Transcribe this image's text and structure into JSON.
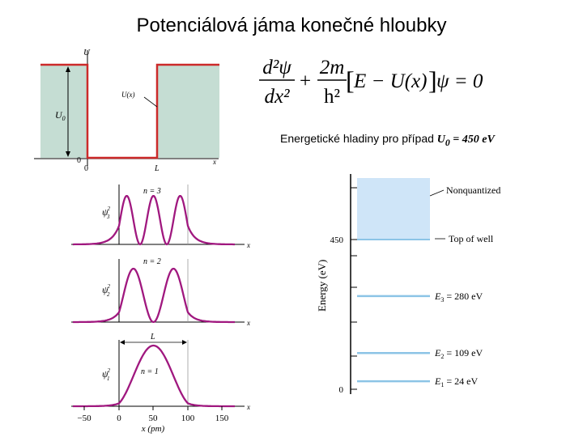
{
  "slide": {
    "title": "Potenciálová jáma konečné hloubky",
    "caption_prefix": "Energetické hladiny pro případ",
    "caption_var": "U",
    "caption_sub": "0",
    "caption_value": " = 450 eV"
  },
  "equation": {
    "num_left": "d²ψ",
    "den_left": "dx²",
    "num_right": "2m",
    "den_right": "h²",
    "bracket": "E − U(x)",
    "tail": "ψ = 0"
  },
  "potential_plot": {
    "y_axis_label": "U",
    "depth_label": "U",
    "depth_sub": "0",
    "curve_label": "U(x)",
    "x_axis_label": "x",
    "tick_zero_y": "0",
    "tick_zero_x": "0",
    "tick_L": "L"
  },
  "wave_plots": {
    "x_axis_label": "x (pm)",
    "axis_letter": "x",
    "width_label": "L",
    "panels": [
      {
        "n_label": "n = 3",
        "psi": "ψ",
        "sub": "3",
        "sup": "2"
      },
      {
        "n_label": "n = 2",
        "psi": "ψ",
        "sub": "2",
        "sup": "2"
      },
      {
        "n_label": "n = 1",
        "psi": "ψ",
        "sub": "1",
        "sup": "2"
      }
    ],
    "ticks": [
      "−50",
      "0",
      "50",
      "100",
      "150"
    ]
  },
  "energy_diagram": {
    "y_label": "Energy (eV)",
    "tick_450": "450",
    "tick_0": "0",
    "nonquantized_label": "Nonquantized",
    "top_label": "Top of well",
    "levels": [
      {
        "E": "E",
        "sub": "3",
        "text": " = 280 eV"
      },
      {
        "E": "E",
        "sub": "2",
        "text": " = 109 eV"
      },
      {
        "E": "E",
        "sub": "1",
        "text": " = 24 eV"
      }
    ]
  },
  "chart_data": [
    {
      "type": "line",
      "title": "",
      "xlabel": "x",
      "ylabel": "U",
      "series": [
        {
          "name": "U(x)",
          "x": [
            "<0",
            "0",
            "0…L",
            "L",
            ">L"
          ],
          "values": [
            "U0",
            "U0→0",
            "0",
            "0→U0",
            "U0"
          ]
        }
      ]
    },
    {
      "type": "line",
      "title": "",
      "xlabel": "x (pm)",
      "ylabel": "ψ²",
      "x_ticks": [
        -50,
        0,
        50,
        100,
        150
      ],
      "series": [
        {
          "name": "n = 3",
          "peaks": 3
        },
        {
          "name": "n = 2",
          "peaks": 2
        },
        {
          "name": "n = 1",
          "peaks": 1
        }
      ]
    },
    {
      "type": "bar",
      "title": "",
      "ylabel": "Energy (eV)",
      "y_ticks": [
        0,
        450
      ],
      "categories": [
        "E1",
        "E2",
        "E3",
        "Top of well"
      ],
      "values": [
        24,
        109,
        280,
        450
      ]
    }
  ],
  "colors": {
    "well_fill": "#c5ddd3",
    "potential": "#cc2a2a",
    "wave": "#a0187f",
    "nonquantized": "#cfe5f8",
    "levels": "#8cc4e6"
  }
}
